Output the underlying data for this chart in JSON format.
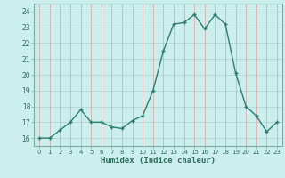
{
  "x": [
    0,
    1,
    2,
    3,
    4,
    5,
    6,
    7,
    8,
    9,
    10,
    11,
    12,
    13,
    14,
    15,
    16,
    17,
    18,
    19,
    20,
    21,
    22,
    23
  ],
  "y": [
    16,
    16.0,
    16.5,
    17.0,
    17.8,
    17.0,
    17.0,
    16.7,
    16.6,
    17.1,
    17.4,
    19.0,
    21.5,
    23.2,
    23.3,
    23.8,
    22.9,
    23.8,
    23.2,
    20.1,
    18.0,
    17.4,
    16.4,
    17.0
  ],
  "line_color": "#2d7d6e",
  "marker_color": "#2d7d6e",
  "bg_color": "#cceeed",
  "grid_color_h": "#b8d8d8",
  "grid_color_v": "#d8b8b8",
  "xlabel": "Humidex (Indice chaleur)",
  "ylim": [
    15.5,
    24.5
  ],
  "xlim": [
    -0.5,
    23.5
  ],
  "yticks": [
    16,
    17,
    18,
    19,
    20,
    21,
    22,
    23,
    24
  ],
  "xtick_labels": [
    "0",
    "1",
    "2",
    "3",
    "4",
    "5",
    "6",
    "7",
    "8",
    "9",
    "10",
    "11",
    "12",
    "13",
    "14",
    "15",
    "16",
    "17",
    "18",
    "19",
    "20",
    "21",
    "22",
    "23"
  ],
  "xlabel_color": "#2d6b5e",
  "tick_color": "#2d6b5e",
  "spine_color": "#7aada8"
}
